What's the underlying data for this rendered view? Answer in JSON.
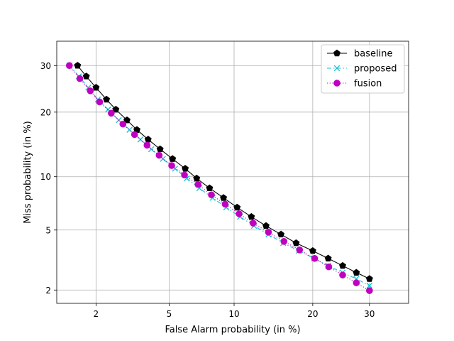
{
  "chart_data": {
    "type": "line",
    "title": "",
    "xlabel": "False Alarm probability (in %)",
    "ylabel": "Miss probability (in %)",
    "xscale": "probit",
    "yscale": "probit",
    "xlim": [
      1.15,
      38
    ],
    "ylim": [
      1.6,
      36
    ],
    "xticks": [
      2,
      5,
      10,
      20,
      30
    ],
    "yticks": [
      2,
      5,
      10,
      20,
      30
    ],
    "xtick_labels": [
      "2",
      "5",
      "10",
      "20",
      "30"
    ],
    "ytick_labels": [
      "2",
      "5",
      "10",
      "20",
      "30"
    ],
    "grid": true,
    "legend_position": "top-right",
    "series": [
      {
        "name": "baseline",
        "color": "#000000",
        "line_style": "solid",
        "marker": "pentagon",
        "x": [
          1.55,
          1.75,
          2.0,
          2.3,
          2.6,
          3.0,
          3.4,
          3.9,
          4.5,
          5.2,
          6.0,
          6.8,
          7.8,
          9.0,
          10.3,
          11.8,
          13.5,
          15.4,
          17.5,
          20.0,
          22.5,
          25.0,
          27.5,
          30.0
        ],
        "y": [
          30.0,
          27.5,
          25.0,
          22.5,
          20.5,
          18.5,
          16.8,
          15.2,
          13.7,
          12.3,
          11.0,
          9.8,
          8.7,
          7.7,
          6.8,
          6.0,
          5.3,
          4.7,
          4.15,
          3.7,
          3.3,
          2.95,
          2.65,
          2.4
        ]
      },
      {
        "name": "proposed",
        "color": "#17becf",
        "line_style": "dashdot",
        "marker": "x",
        "x": [
          1.38,
          1.58,
          1.8,
          2.05,
          2.35,
          2.7,
          3.1,
          3.55,
          4.05,
          4.65,
          5.35,
          6.1,
          7.0,
          8.05,
          9.25,
          10.6,
          12.1,
          13.8,
          15.7,
          17.9,
          20.2,
          22.5,
          25.0,
          27.5,
          30.0
        ],
        "y": [
          30.0,
          27.5,
          25.0,
          22.5,
          20.5,
          18.5,
          16.8,
          15.2,
          13.7,
          12.3,
          11.0,
          9.8,
          8.7,
          7.7,
          6.8,
          6.0,
          5.3,
          4.7,
          4.15,
          3.7,
          3.3,
          2.95,
          2.65,
          2.4,
          2.15
        ]
      },
      {
        "name": "fusion",
        "color": "#bf00bf",
        "line_style": "dotted",
        "marker": "circle",
        "x": [
          1.38,
          1.6,
          1.85,
          2.1,
          2.45,
          2.85,
          3.3,
          3.85,
          4.45,
          5.15,
          5.95,
          6.9,
          7.95,
          9.15,
          10.5,
          12.0,
          13.8,
          15.8,
          18.0,
          20.3,
          22.6,
          25.0,
          27.5,
          30.0
        ],
        "y": [
          30.0,
          27.0,
          24.3,
          22.0,
          19.8,
          17.8,
          16.0,
          14.3,
          12.8,
          11.4,
          10.2,
          9.1,
          8.0,
          7.1,
          6.25,
          5.5,
          4.85,
          4.25,
          3.75,
          3.3,
          2.9,
          2.55,
          2.25,
          1.98
        ]
      }
    ]
  }
}
